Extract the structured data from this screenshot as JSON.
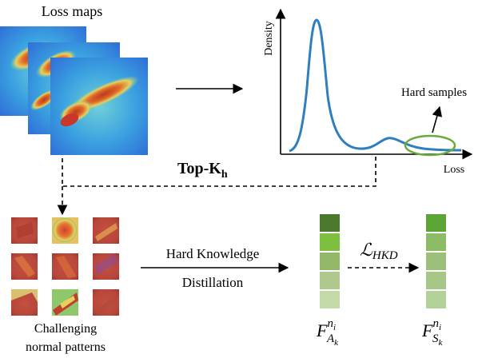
{
  "title": "Loss maps",
  "density_plot": {
    "y_label": "Density",
    "x_label": "Loss",
    "hard_samples_label": "Hard samples",
    "curve_color": "#2e7fc0",
    "ellipse_color": "#6aaa3a"
  },
  "topk": {
    "main": "Top-K",
    "sub": "h"
  },
  "distill_label": {
    "line1": "Hard Knowledge",
    "line2": "Distillation"
  },
  "patterns_caption": {
    "line1": "Challenging",
    "line2": "normal patterns"
  },
  "loss_label": "ℒ",
  "loss_sub": "HKD",
  "feature_a": {
    "main": "F",
    "sup": "n",
    "sup_sub": "i",
    "sub": "A",
    "sub_sub": "k"
  },
  "feature_s": {
    "main": "F",
    "sup": "n",
    "sup_sub": "i",
    "sub": "S",
    "sub_sub": "k"
  },
  "teacher_colors": [
    "#4b7a2e",
    "#7fbf3f",
    "#94b86a",
    "#aec88e",
    "#c2d9a8"
  ],
  "student_colors": [
    "#5aa535",
    "#8cbc65",
    "#9cc079",
    "#a6c788",
    "#b3d29a"
  ],
  "icons": {
    "arrow": "right-arrow-icon",
    "dashed_connector": "dashed-arrow-icon"
  }
}
